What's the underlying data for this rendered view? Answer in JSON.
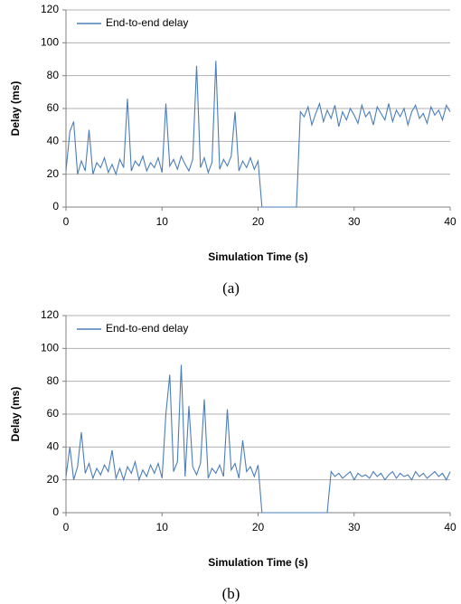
{
  "chart_data": [
    {
      "type": "line",
      "x_label": "Simulation Time (s)",
      "y_label": "Delay (ms)",
      "caption": "(a)",
      "x": [
        0,
        0.4,
        0.8,
        1.2,
        1.6,
        2,
        2.4,
        2.8,
        3.2,
        3.6,
        4,
        4.4,
        4.8,
        5.2,
        5.6,
        6,
        6.4,
        6.8,
        7.2,
        7.6,
        8,
        8.4,
        8.8,
        9.2,
        9.6,
        10,
        10.4,
        10.8,
        11.2,
        11.6,
        12,
        12.4,
        12.8,
        13.2,
        13.6,
        14,
        14.4,
        14.8,
        15.2,
        15.6,
        16,
        16.4,
        16.8,
        17.2,
        17.6,
        18,
        18.4,
        18.8,
        19.2,
        19.6,
        20,
        20.4,
        20.8,
        21.2,
        21.6,
        22,
        22.4,
        22.8,
        23.2,
        23.6,
        24,
        24.4,
        24.8,
        25.2,
        25.6,
        26,
        26.4,
        26.8,
        27.2,
        27.6,
        28,
        28.4,
        28.8,
        29.2,
        29.6,
        30,
        30.4,
        30.8,
        31.2,
        31.6,
        32,
        32.4,
        32.8,
        33.2,
        33.6,
        34,
        34.4,
        34.8,
        35.2,
        35.6,
        36,
        36.4,
        36.8,
        37.2,
        37.6,
        38,
        38.4,
        38.8,
        39.2,
        39.6,
        40
      ],
      "series": [
        {
          "name": "End-to-end delay",
          "color": "#4a7ebb",
          "values": [
            22,
            46,
            52,
            20,
            28,
            22,
            47,
            20,
            27,
            24,
            30,
            21,
            26,
            20,
            29,
            24,
            66,
            22,
            28,
            25,
            31,
            22,
            27,
            24,
            30,
            21,
            63,
            25,
            29,
            23,
            31,
            26,
            22,
            29,
            86,
            24,
            30,
            21,
            27,
            89,
            23,
            29,
            25,
            31,
            58,
            22,
            28,
            24,
            30,
            23,
            28,
            0,
            0,
            0,
            0,
            0,
            0,
            0,
            0,
            0,
            0,
            58,
            55,
            61,
            50,
            57,
            63,
            52,
            59,
            54,
            62,
            49,
            58,
            53,
            60,
            56,
            51,
            62,
            55,
            58,
            50,
            61,
            57,
            53,
            63,
            52,
            59,
            55,
            60,
            50,
            58,
            62,
            54,
            57,
            51,
            61,
            56,
            59,
            53,
            62,
            58
          ]
        }
      ],
      "xlim": [
        0,
        40
      ],
      "xticks": [
        0,
        10,
        20,
        30,
        40
      ],
      "ylim": [
        0,
        120
      ],
      "yticks": [
        0,
        20,
        40,
        60,
        80,
        100,
        120
      ],
      "grid": true
    },
    {
      "type": "line",
      "x_label": "Simulation Time (s)",
      "y_label": "Delay (ms)",
      "caption": "(b)",
      "x": [
        0,
        0.4,
        0.8,
        1.2,
        1.6,
        2,
        2.4,
        2.8,
        3.2,
        3.6,
        4,
        4.4,
        4.8,
        5.2,
        5.6,
        6,
        6.4,
        6.8,
        7.2,
        7.6,
        8,
        8.4,
        8.8,
        9.2,
        9.6,
        10,
        10.4,
        10.8,
        11.2,
        11.6,
        12,
        12.4,
        12.8,
        13.2,
        13.6,
        14,
        14.4,
        14.8,
        15.2,
        15.6,
        16,
        16.4,
        16.8,
        17.2,
        17.6,
        18,
        18.4,
        18.8,
        19.2,
        19.6,
        20,
        20.4,
        20.8,
        21.2,
        21.6,
        22,
        22.4,
        22.8,
        23.2,
        23.6,
        24,
        24.4,
        24.8,
        25.2,
        25.6,
        26,
        26.4,
        26.8,
        27.2,
        27.6,
        28,
        28.4,
        28.8,
        29.2,
        29.6,
        30,
        30.4,
        30.8,
        31.2,
        31.6,
        32,
        32.4,
        32.8,
        33.2,
        33.6,
        34,
        34.4,
        34.8,
        35.2,
        35.6,
        36,
        36.4,
        36.8,
        37.2,
        37.6,
        38,
        38.4,
        38.8,
        39.2,
        39.6,
        40
      ],
      "series": [
        {
          "name": "End-to-end delay",
          "color": "#4a7ebb",
          "values": [
            22,
            40,
            20,
            28,
            49,
            24,
            30,
            21,
            27,
            23,
            29,
            25,
            38,
            21,
            27,
            20,
            28,
            24,
            31,
            20,
            26,
            22,
            29,
            24,
            30,
            21,
            60,
            84,
            25,
            31,
            90,
            22,
            65,
            28,
            23,
            30,
            69,
            21,
            27,
            24,
            29,
            22,
            63,
            26,
            30,
            21,
            44,
            25,
            28,
            22,
            29,
            0,
            0,
            0,
            0,
            0,
            0,
            0,
            0,
            0,
            0,
            0,
            0,
            0,
            0,
            0,
            0,
            0,
            0,
            25,
            22,
            24,
            21,
            23,
            25,
            20,
            24,
            22,
            23,
            21,
            25,
            22,
            24,
            20,
            23,
            25,
            21,
            24,
            22,
            23,
            20,
            25,
            22,
            24,
            21,
            23,
            25,
            22,
            24,
            20,
            25
          ]
        }
      ],
      "xlim": [
        0,
        40
      ],
      "xticks": [
        0,
        10,
        20,
        30,
        40
      ],
      "ylim": [
        0,
        120
      ],
      "yticks": [
        0,
        20,
        40,
        60,
        80,
        100,
        120
      ],
      "grid": true
    }
  ]
}
